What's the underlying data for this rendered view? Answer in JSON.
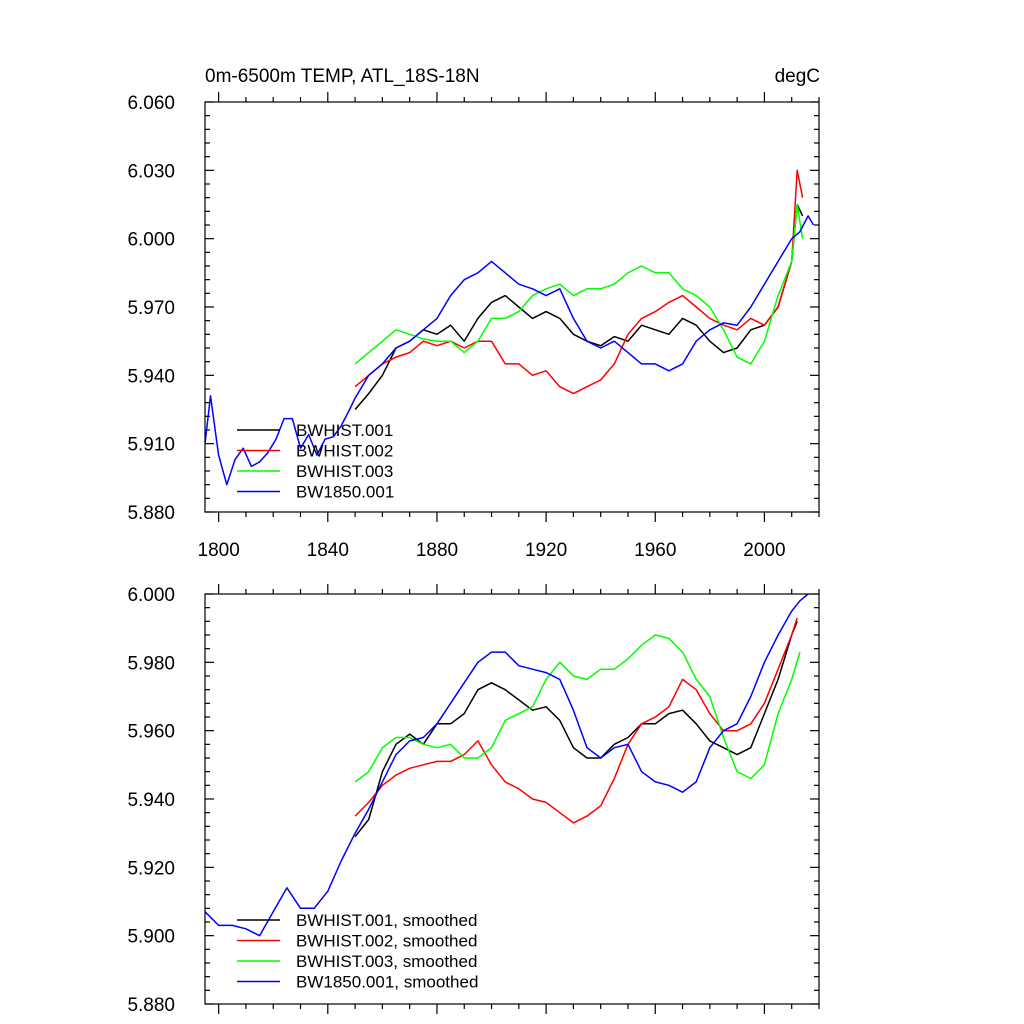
{
  "chart_data": [
    {
      "type": "line",
      "title": "0m-6500m TEMP, ATL_18S-18N",
      "units": "degC",
      "xlabel": "",
      "ylabel": "",
      "xlim": [
        1795,
        2020
      ],
      "ylim": [
        5.88,
        6.06
      ],
      "xticks": [
        1800,
        1840,
        1880,
        1920,
        1960,
        2000
      ],
      "xtick_labels": [
        "1800",
        "1840",
        "1880",
        "1920",
        "1960",
        "2000"
      ],
      "yticks": [
        5.88,
        5.91,
        5.94,
        5.97,
        6.0,
        6.03,
        6.06
      ],
      "ytick_labels": [
        "5.880",
        "5.910",
        "5.940",
        "5.970",
        "6.000",
        "6.030",
        "6.060"
      ],
      "legend_position": "bottom-left",
      "series": [
        {
          "name": "BWHIST.001",
          "color": "#000000",
          "x": [
            1850,
            1855,
            1860,
            1865,
            1870,
            1875,
            1880,
            1885,
            1890,
            1895,
            1900,
            1905,
            1910,
            1915,
            1920,
            1925,
            1930,
            1935,
            1940,
            1945,
            1950,
            1955,
            1960,
            1965,
            1970,
            1975,
            1980,
            1985,
            1990,
            1995,
            2000,
            2005,
            2010,
            2012,
            2014
          ],
          "y": [
            5.925,
            5.932,
            5.94,
            5.952,
            5.955,
            5.96,
            5.958,
            5.962,
            5.955,
            5.965,
            5.972,
            5.975,
            5.97,
            5.965,
            5.968,
            5.965,
            5.958,
            5.955,
            5.953,
            5.957,
            5.955,
            5.962,
            5.96,
            5.958,
            5.965,
            5.962,
            5.955,
            5.95,
            5.952,
            5.96,
            5.962,
            5.97,
            5.99,
            6.015,
            6.01
          ]
        },
        {
          "name": "BWHIST.002",
          "color": "#ff0000",
          "x": [
            1850,
            1855,
            1860,
            1865,
            1870,
            1875,
            1880,
            1885,
            1890,
            1895,
            1900,
            1905,
            1910,
            1915,
            1920,
            1925,
            1930,
            1935,
            1940,
            1945,
            1950,
            1955,
            1960,
            1965,
            1970,
            1975,
            1980,
            1985,
            1990,
            1995,
            2000,
            2005,
            2010,
            2012,
            2014
          ],
          "y": [
            5.935,
            5.94,
            5.945,
            5.948,
            5.95,
            5.955,
            5.953,
            5.955,
            5.952,
            5.955,
            5.955,
            5.945,
            5.945,
            5.94,
            5.942,
            5.935,
            5.932,
            5.935,
            5.938,
            5.945,
            5.958,
            5.965,
            5.968,
            5.972,
            5.975,
            5.97,
            5.965,
            5.962,
            5.96,
            5.965,
            5.962,
            5.97,
            5.99,
            6.03,
            6.018
          ]
        },
        {
          "name": "BWHIST.003",
          "color": "#00ff00",
          "x": [
            1850,
            1855,
            1860,
            1865,
            1870,
            1875,
            1880,
            1885,
            1890,
            1895,
            1900,
            1905,
            1910,
            1915,
            1920,
            1925,
            1930,
            1935,
            1940,
            1945,
            1950,
            1955,
            1960,
            1965,
            1970,
            1975,
            1980,
            1985,
            1990,
            1995,
            2000,
            2005,
            2010,
            2012,
            2014
          ],
          "y": [
            5.945,
            5.95,
            5.955,
            5.96,
            5.958,
            5.956,
            5.955,
            5.955,
            5.95,
            5.955,
            5.965,
            5.965,
            5.968,
            5.975,
            5.978,
            5.98,
            5.975,
            5.978,
            5.978,
            5.98,
            5.985,
            5.988,
            5.985,
            5.985,
            5.978,
            5.975,
            5.97,
            5.96,
            5.948,
            5.945,
            5.955,
            5.975,
            5.99,
            6.015,
            6.0
          ]
        },
        {
          "name": "BW1850.001",
          "color": "#0000ff",
          "x": [
            1795,
            1797,
            1800,
            1803,
            1806,
            1809,
            1812,
            1815,
            1818,
            1821,
            1824,
            1827,
            1830,
            1833,
            1836,
            1839,
            1842,
            1845,
            1848,
            1850,
            1855,
            1860,
            1865,
            1870,
            1875,
            1880,
            1885,
            1890,
            1895,
            1900,
            1905,
            1910,
            1915,
            1920,
            1925,
            1930,
            1935,
            1940,
            1945,
            1950,
            1955,
            1960,
            1965,
            1970,
            1975,
            1980,
            1985,
            1990,
            1995,
            2000,
            2005,
            2010,
            2013,
            2016,
            2018
          ],
          "y": [
            5.91,
            5.931,
            5.905,
            5.892,
            5.903,
            5.908,
            5.9,
            5.902,
            5.906,
            5.912,
            5.921,
            5.921,
            5.908,
            5.914,
            5.905,
            5.912,
            5.913,
            5.918,
            5.925,
            5.93,
            5.94,
            5.945,
            5.952,
            5.955,
            5.96,
            5.965,
            5.975,
            5.982,
            5.985,
            5.99,
            5.985,
            5.98,
            5.978,
            5.975,
            5.978,
            5.965,
            5.955,
            5.952,
            5.955,
            5.95,
            5.945,
            5.945,
            5.942,
            5.945,
            5.955,
            5.96,
            5.963,
            5.962,
            5.97,
            5.98,
            5.99,
            6.0,
            6.003,
            6.01,
            6.006
          ]
        }
      ]
    },
    {
      "type": "line",
      "title": "",
      "xlabel": "",
      "ylabel": "",
      "xlim": [
        1795,
        2020
      ],
      "ylim": [
        5.88,
        6.0
      ],
      "xticks": [
        1800,
        1840,
        1880,
        1920,
        1960,
        2000
      ],
      "yticks": [
        5.88,
        5.9,
        5.92,
        5.94,
        5.96,
        5.98,
        6.0
      ],
      "ytick_labels": [
        "5.880",
        "5.900",
        "5.920",
        "5.940",
        "5.960",
        "5.980",
        "6.000"
      ],
      "legend_position": "bottom-left",
      "series": [
        {
          "name": "BWHIST.001, smoothed",
          "color": "#000000",
          "x": [
            1850,
            1855,
            1860,
            1865,
            1870,
            1875,
            1880,
            1885,
            1890,
            1895,
            1900,
            1905,
            1910,
            1915,
            1920,
            1925,
            1930,
            1935,
            1940,
            1945,
            1950,
            1955,
            1960,
            1965,
            1970,
            1975,
            1980,
            1985,
            1990,
            1995,
            2000,
            2005,
            2010,
            2012
          ],
          "y": [
            5.929,
            5.934,
            5.948,
            5.956,
            5.959,
            5.956,
            5.962,
            5.962,
            5.965,
            5.972,
            5.974,
            5.972,
            5.969,
            5.966,
            5.967,
            5.963,
            5.955,
            5.952,
            5.952,
            5.956,
            5.958,
            5.962,
            5.962,
            5.965,
            5.966,
            5.962,
            5.957,
            5.955,
            5.953,
            5.955,
            5.965,
            5.975,
            5.988,
            5.992
          ]
        },
        {
          "name": "BWHIST.002, smoothed",
          "color": "#ff0000",
          "x": [
            1850,
            1855,
            1860,
            1865,
            1870,
            1875,
            1880,
            1885,
            1890,
            1895,
            1900,
            1905,
            1910,
            1915,
            1920,
            1925,
            1930,
            1935,
            1940,
            1945,
            1950,
            1955,
            1960,
            1965,
            1970,
            1975,
            1980,
            1985,
            1990,
            1995,
            2000,
            2005,
            2010,
            2012
          ],
          "y": [
            5.935,
            5.939,
            5.944,
            5.947,
            5.949,
            5.95,
            5.951,
            5.951,
            5.953,
            5.957,
            5.95,
            5.945,
            5.943,
            5.94,
            5.939,
            5.936,
            5.933,
            5.935,
            5.938,
            5.946,
            5.956,
            5.962,
            5.964,
            5.967,
            5.975,
            5.972,
            5.965,
            5.96,
            5.96,
            5.962,
            5.968,
            5.978,
            5.988,
            5.993
          ]
        },
        {
          "name": "BWHIST.003, smoothed",
          "color": "#00ff00",
          "x": [
            1850,
            1855,
            1860,
            1865,
            1870,
            1875,
            1880,
            1885,
            1890,
            1895,
            1900,
            1905,
            1910,
            1915,
            1920,
            1925,
            1930,
            1935,
            1940,
            1945,
            1950,
            1955,
            1960,
            1965,
            1970,
            1975,
            1980,
            1985,
            1990,
            1995,
            2000,
            2005,
            2010,
            2013
          ],
          "y": [
            5.945,
            5.948,
            5.955,
            5.958,
            5.958,
            5.956,
            5.955,
            5.956,
            5.952,
            5.952,
            5.955,
            5.963,
            5.965,
            5.967,
            5.975,
            5.98,
            5.976,
            5.975,
            5.978,
            5.978,
            5.981,
            5.985,
            5.988,
            5.987,
            5.983,
            5.975,
            5.97,
            5.958,
            5.948,
            5.946,
            5.95,
            5.965,
            5.975,
            5.983
          ]
        },
        {
          "name": "BW1850.001, smoothed",
          "color": "#0000ff",
          "x": [
            1795,
            1800,
            1805,
            1810,
            1815,
            1820,
            1825,
            1830,
            1835,
            1840,
            1845,
            1850,
            1855,
            1860,
            1865,
            1870,
            1875,
            1880,
            1885,
            1890,
            1895,
            1900,
            1905,
            1910,
            1915,
            1920,
            1925,
            1930,
            1935,
            1940,
            1945,
            1950,
            1955,
            1960,
            1965,
            1970,
            1975,
            1980,
            1985,
            1990,
            1995,
            2000,
            2005,
            2010,
            2013,
            2016
          ],
          "y": [
            5.907,
            5.903,
            5.903,
            5.902,
            5.9,
            5.907,
            5.914,
            5.908,
            5.908,
            5.913,
            5.922,
            5.93,
            5.937,
            5.945,
            5.953,
            5.957,
            5.958,
            5.962,
            5.968,
            5.974,
            5.98,
            5.983,
            5.983,
            5.979,
            5.978,
            5.977,
            5.975,
            5.966,
            5.955,
            5.952,
            5.955,
            5.956,
            5.948,
            5.945,
            5.944,
            5.942,
            5.945,
            5.955,
            5.96,
            5.962,
            5.97,
            5.98,
            5.988,
            5.995,
            5.998,
            6.0
          ]
        }
      ]
    }
  ]
}
